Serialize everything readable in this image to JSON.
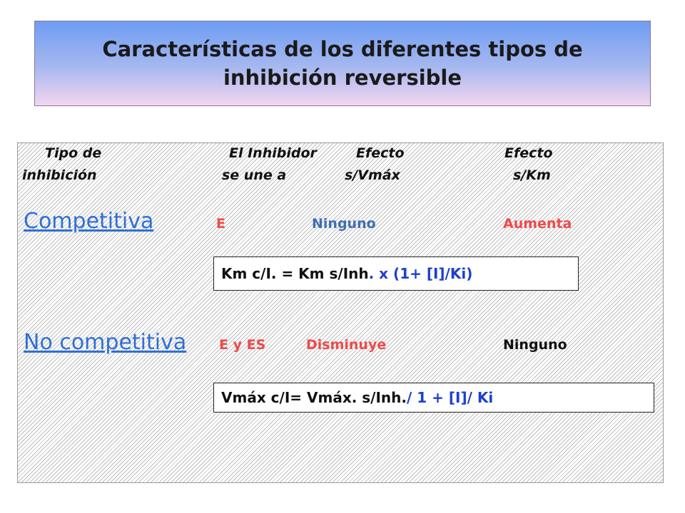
{
  "title": "Características de los diferentes tipos de inhibición reversible",
  "headers": {
    "col1_line1": "Tipo de",
    "col1_line2": "inhibición",
    "col2_line1": "El Inhibidor",
    "col2_line2": "se une a",
    "col3_line1": "Efecto",
    "col3_line2": "s/Vmáx",
    "col4_line1": "Efecto",
    "col4_line2": "s/Km"
  },
  "rows": [
    {
      "type": "Competitiva",
      "binds_to": "E",
      "effect_vmax": "Ninguno",
      "effect_km": "Aumenta",
      "formula_black": "Km c/I. = Km s/Inh",
      "formula_blue": ". x  (1+ [I]/Ki)"
    },
    {
      "type": "No competitiva",
      "binds_to": "E y ES",
      "effect_vmax": "Disminuye",
      "effect_km": "Ninguno",
      "formula_black": "Vmáx c/I=  Vmáx. s/Inh. ",
      "formula_blue": "/ 1 + [I]/ Ki"
    }
  ],
  "colors": {
    "link_blue": "#2f6fd6",
    "red": "#ee4a4a",
    "slate_blue": "#3f6fb0",
    "formula_blue": "#1d3fd1"
  }
}
